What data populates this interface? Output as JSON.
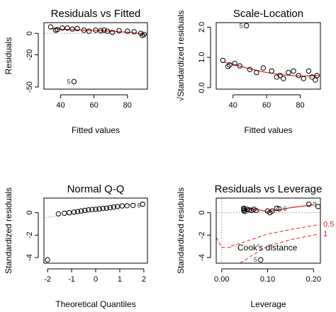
{
  "colors": {
    "smooth": "#e0211c",
    "reference": "#aaaaaa",
    "points": "#000000"
  },
  "chart_data": [
    {
      "type": "scatter",
      "title": "Residuals vs Fitted",
      "xlabel": "Fitted values",
      "ylabel": "Residuals",
      "xlim": [
        30,
        92
      ],
      "ylim": [
        -52,
        10
      ],
      "xticks": [
        40,
        60,
        80
      ],
      "yticks": [
        0,
        -20,
        -50
      ],
      "xtick_labels": [
        "40",
        "60",
        "80"
      ],
      "ytick_labels": [
        "0",
        "-20",
        "-50"
      ],
      "points": [
        {
          "x": 34,
          "y": 6
        },
        {
          "x": 37,
          "y": 3
        },
        {
          "x": 38,
          "y": 3.5
        },
        {
          "x": 41,
          "y": 5
        },
        {
          "x": 44,
          "y": 5
        },
        {
          "x": 47,
          "y": 4
        },
        {
          "x": 48,
          "y": -45
        },
        {
          "x": 50,
          "y": 4.5
        },
        {
          "x": 54,
          "y": 3
        },
        {
          "x": 57,
          "y": 2
        },
        {
          "x": 61,
          "y": 3
        },
        {
          "x": 64,
          "y": 2.5
        },
        {
          "x": 66,
          "y": 3
        },
        {
          "x": 68,
          "y": 2
        },
        {
          "x": 71,
          "y": 1
        },
        {
          "x": 75,
          "y": 2.5
        },
        {
          "x": 80,
          "y": 2
        },
        {
          "x": 84,
          "y": 1.5
        },
        {
          "x": 88,
          "y": 0
        },
        {
          "x": 89,
          "y": -2
        },
        {
          "x": 90,
          "y": -1
        }
      ],
      "labels": [
        {
          "x": 48,
          "y": -45,
          "text": "5"
        }
      ],
      "reference_line": {
        "y": 0
      },
      "smooth": [
        [
          34,
          4.5
        ],
        [
          45,
          3.5
        ],
        [
          55,
          3
        ],
        [
          65,
          2.5
        ],
        [
          75,
          1.5
        ],
        [
          83,
          0.8
        ],
        [
          88,
          -0.5
        ],
        [
          91,
          -1.5
        ]
      ]
    },
    {
      "type": "scatter",
      "title": "Scale-Location",
      "xlabel": "Fitted values",
      "ylabel": "√Standardized residuals",
      "xlim": [
        30,
        92
      ],
      "ylim": [
        -0.05,
        2.15
      ],
      "xticks": [
        40,
        60,
        80
      ],
      "yticks": [
        0.0,
        1.0,
        2.0
      ],
      "xtick_labels": [
        "40",
        "60",
        "80"
      ],
      "ytick_labels": [
        "0.0",
        "1.0",
        "2.0"
      ],
      "points": [
        {
          "x": 34,
          "y": 0.9
        },
        {
          "x": 37,
          "y": 0.7
        },
        {
          "x": 38,
          "y": 0.75
        },
        {
          "x": 41,
          "y": 0.8
        },
        {
          "x": 44,
          "y": 0.72
        },
        {
          "x": 48,
          "y": 2.05
        },
        {
          "x": 50,
          "y": 0.6
        },
        {
          "x": 54,
          "y": 0.5
        },
        {
          "x": 58,
          "y": 0.65
        },
        {
          "x": 63,
          "y": 0.55
        },
        {
          "x": 66,
          "y": 0.35
        },
        {
          "x": 68,
          "y": 0.4
        },
        {
          "x": 70,
          "y": 0.3
        },
        {
          "x": 73,
          "y": 0.5
        },
        {
          "x": 76,
          "y": 0.55
        },
        {
          "x": 79,
          "y": 0.4
        },
        {
          "x": 82,
          "y": 0.3
        },
        {
          "x": 85,
          "y": 0.55
        },
        {
          "x": 87,
          "y": 0.35
        },
        {
          "x": 89,
          "y": 0.25
        },
        {
          "x": 90,
          "y": 0.4
        }
      ],
      "labels": [
        {
          "x": 48,
          "y": 2.05,
          "text": "5"
        }
      ],
      "smooth": [
        [
          34,
          0.85
        ],
        [
          40,
          0.78
        ],
        [
          50,
          0.62
        ],
        [
          60,
          0.5
        ],
        [
          70,
          0.42
        ],
        [
          80,
          0.38
        ],
        [
          91,
          0.4
        ]
      ]
    },
    {
      "type": "scatter",
      "title": "Normal Q-Q",
      "xlabel": "Theoretical Quantiles",
      "ylabel": "Standardized residuals",
      "xlim": [
        -2.15,
        2.15
      ],
      "ylim": [
        -4.5,
        1.3
      ],
      "xticks": [
        -2,
        -1,
        0,
        1,
        2
      ],
      "yticks": [
        0,
        -2,
        -4
      ],
      "xtick_labels": [
        "-2",
        "-1",
        "0",
        "1",
        "2"
      ],
      "ytick_labels": [
        "0",
        "-2",
        "-4"
      ],
      "points": [
        {
          "x": -2.0,
          "y": -4.2
        },
        {
          "x": -1.55,
          "y": -0.1
        },
        {
          "x": -1.3,
          "y": -0.05
        },
        {
          "x": -1.1,
          "y": 0.0
        },
        {
          "x": -0.9,
          "y": 0.05
        },
        {
          "x": -0.75,
          "y": 0.1
        },
        {
          "x": -0.6,
          "y": 0.15
        },
        {
          "x": -0.45,
          "y": 0.2
        },
        {
          "x": -0.3,
          "y": 0.25
        },
        {
          "x": -0.15,
          "y": 0.28
        },
        {
          "x": 0.0,
          "y": 0.3
        },
        {
          "x": 0.15,
          "y": 0.33
        },
        {
          "x": 0.3,
          "y": 0.38
        },
        {
          "x": 0.45,
          "y": 0.4
        },
        {
          "x": 0.6,
          "y": 0.45
        },
        {
          "x": 0.75,
          "y": 0.5
        },
        {
          "x": 0.9,
          "y": 0.55
        },
        {
          "x": 1.1,
          "y": 0.6
        },
        {
          "x": 1.3,
          "y": 0.62
        },
        {
          "x": 1.55,
          "y": 0.65
        },
        {
          "x": 1.95,
          "y": 0.75
        }
      ],
      "labels": [
        {
          "x": -2.0,
          "y": -4.2,
          "text": "5"
        },
        {
          "x": 1.55,
          "y": 0.65,
          "text": "6"
        },
        {
          "x": 1.95,
          "y": 0.75,
          "text": "9"
        }
      ],
      "reference_line": {
        "points": [
          [
            -2.1,
            -0.45
          ],
          [
            2.1,
            0.95
          ]
        ]
      }
    },
    {
      "type": "scatter",
      "title": "Residuals vs Leverage",
      "xlabel": "Leverage",
      "ylabel": "Standardized residuals",
      "xlim": [
        -0.012,
        0.215
      ],
      "ylim": [
        -4.5,
        1.3
      ],
      "xticks": [
        0.0,
        0.1,
        0.2
      ],
      "yticks": [
        0,
        -2,
        -4
      ],
      "xtick_labels": [
        "0.00",
        "0.10",
        "0.20"
      ],
      "ytick_labels": [
        "0",
        "-2",
        "-4"
      ],
      "points": [
        {
          "x": 0.048,
          "y": 0.4
        },
        {
          "x": 0.048,
          "y": 0.2
        },
        {
          "x": 0.049,
          "y": 0.3
        },
        {
          "x": 0.05,
          "y": 0.1
        },
        {
          "x": 0.055,
          "y": 0.3
        },
        {
          "x": 0.06,
          "y": 0.25
        },
        {
          "x": 0.065,
          "y": 0.2
        },
        {
          "x": 0.07,
          "y": 0.3
        },
        {
          "x": 0.075,
          "y": 0.2
        },
        {
          "x": 0.085,
          "y": -4.2
        },
        {
          "x": 0.1,
          "y": 0.15
        },
        {
          "x": 0.105,
          "y": 0.0
        },
        {
          "x": 0.11,
          "y": 0.15
        },
        {
          "x": 0.12,
          "y": 0.4
        },
        {
          "x": 0.125,
          "y": 0.35
        },
        {
          "x": 0.19,
          "y": 0.75
        },
        {
          "x": 0.21,
          "y": 0.55
        }
      ],
      "labels": [
        {
          "x": 0.085,
          "y": -4.2,
          "text": "5"
        },
        {
          "x": 0.125,
          "y": 0.35,
          "text": "6"
        },
        {
          "x": 0.19,
          "y": 0.75,
          "text": "9"
        }
      ],
      "smooth": [
        [
          0.048,
          0.25
        ],
        [
          0.06,
          0.3
        ],
        [
          0.08,
          0.25
        ],
        [
          0.1,
          0.1
        ],
        [
          0.12,
          0.2
        ],
        [
          0.15,
          0.45
        ],
        [
          0.2,
          0.7
        ]
      ],
      "dotted_zero_y": true,
      "dotted_zero_x": true,
      "cooks_label": "Cook's distance",
      "contours": [
        {
          "level": "0.5",
          "points": [
            [
              0.02,
              -3.0
            ],
            [
              0.05,
              -2.6
            ],
            [
              0.1,
              -1.9
            ],
            [
              0.15,
              -1.5
            ],
            [
              0.2,
              -1.15
            ],
            [
              0.212,
              -1.05
            ]
          ]
        },
        {
          "level": "1",
          "points": [
            [
              0.04,
              -4.5
            ],
            [
              0.07,
              -3.7
            ],
            [
              0.1,
              -3.0
            ],
            [
              0.15,
              -2.4
            ],
            [
              0.2,
              -2.0
            ],
            [
              0.212,
              -1.9
            ]
          ]
        },
        {
          "level": "",
          "points": [
            [
              -0.012,
              -2.2
            ],
            [
              0.0,
              -3.1
            ],
            [
              0.02,
              -3.1
            ]
          ]
        }
      ]
    }
  ]
}
